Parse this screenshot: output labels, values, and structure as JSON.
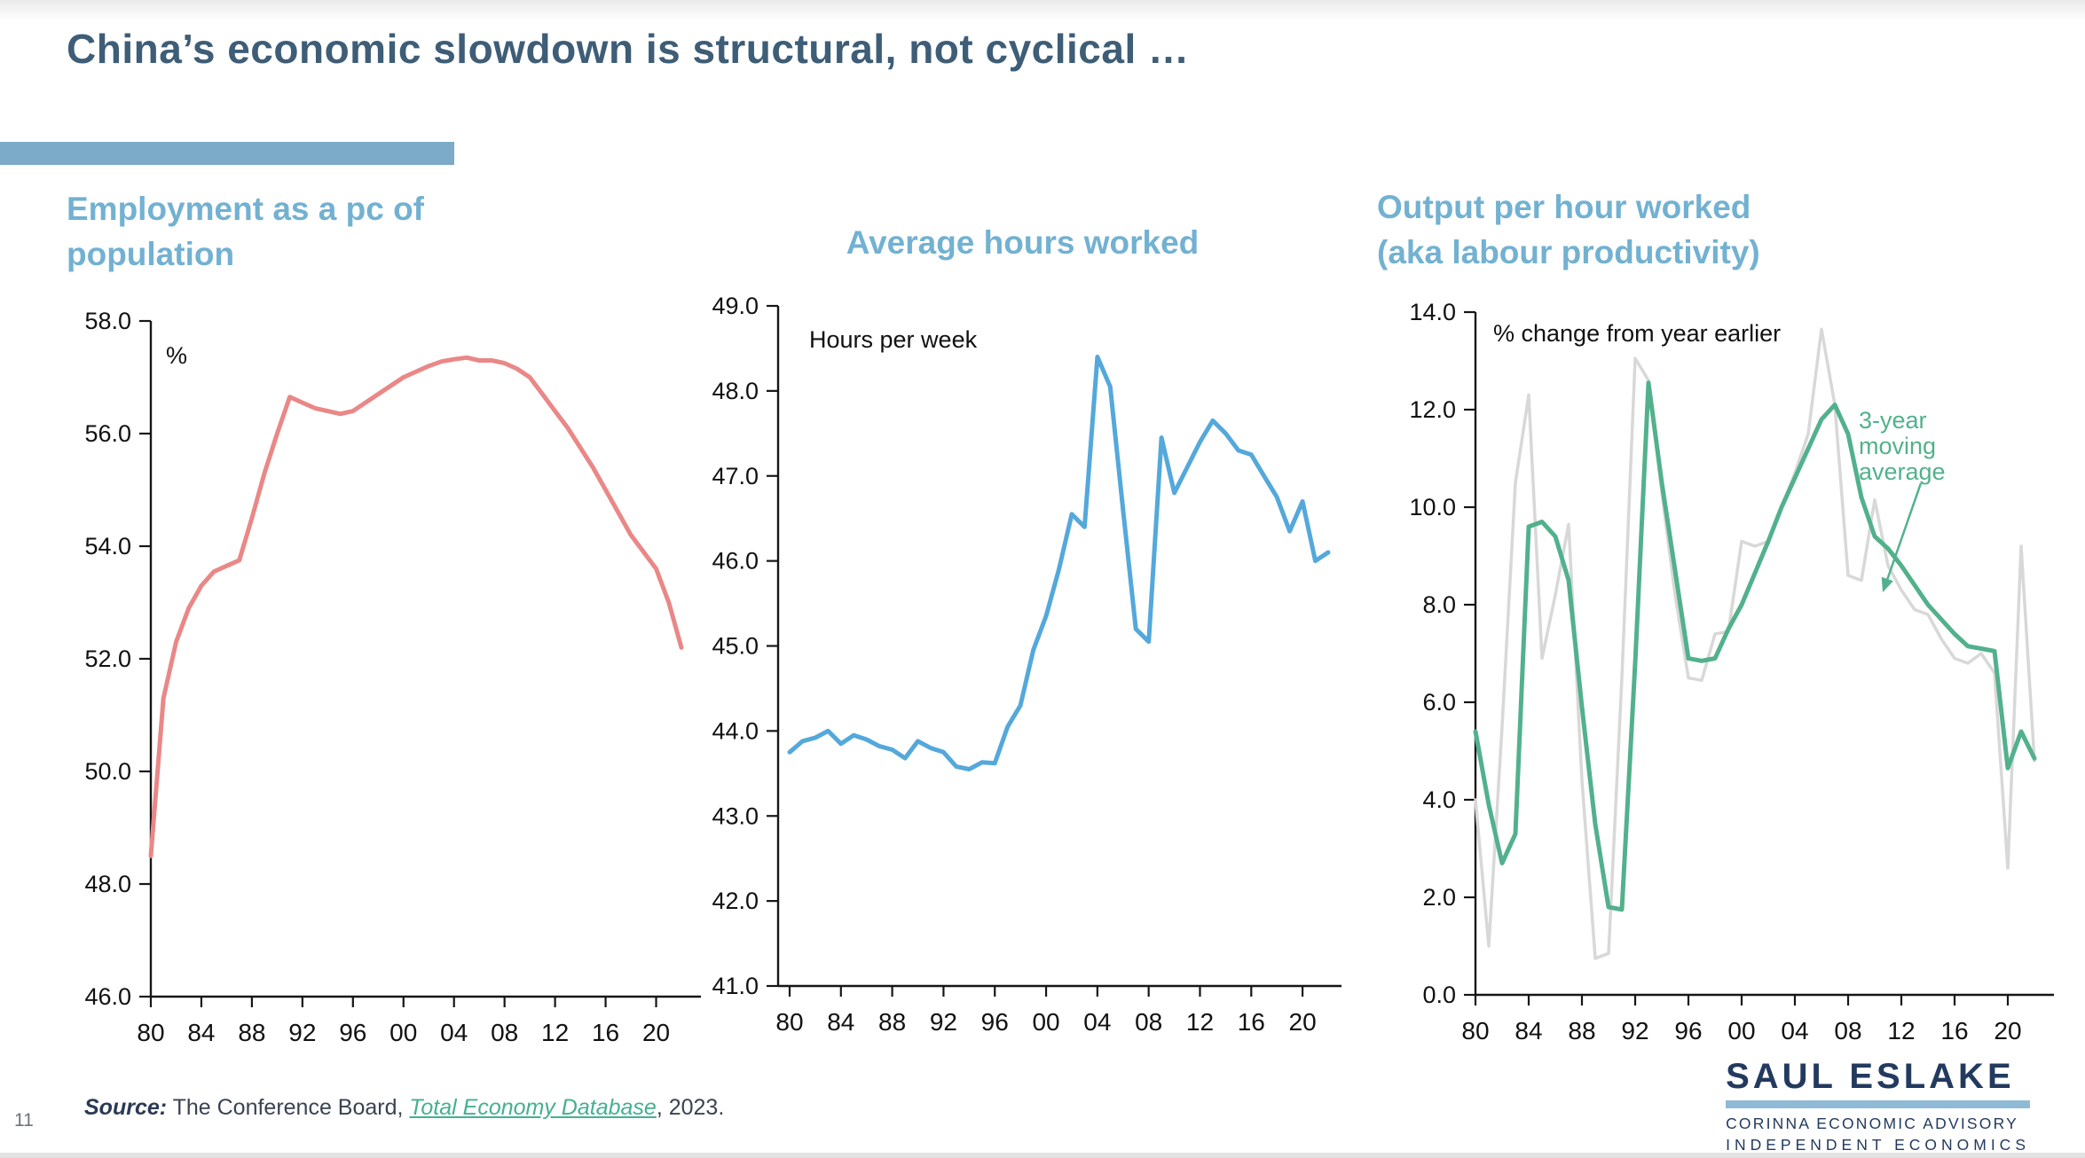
{
  "slide": {
    "title": "China’s economic slowdown is structural, not cyclical  …",
    "page_number": "11",
    "accent_bar_color": "#7BABC8",
    "title_color": "#3E5D77",
    "chart_title_color": "#72B1D1"
  },
  "source": {
    "label": "Source:",
    "text_before_link": " The Conference Board, ",
    "link_text": "Total Economy Database",
    "text_after_link": ", 2023.",
    "link_color": "#45B08E"
  },
  "logo": {
    "name": "SAUL ESLAKE",
    "line1": "CORINNA ECONOMIC ADVISORY",
    "line2": "INDEPENDENT ECONOMICS",
    "navy": "#223A5E",
    "bar_color": "#8FBAD6"
  },
  "chart_data": [
    {
      "type": "line",
      "title_lines": [
        "Employment as a pc of",
        "population"
      ],
      "unit_label": "%",
      "xlabel": "",
      "ylabel": "%",
      "ylim": [
        46.0,
        58.0
      ],
      "ytick_step": 2.0,
      "x_start": 1980,
      "x_end": 2022,
      "x_frequency": "annual",
      "xtick_labels": [
        "80",
        "84",
        "88",
        "92",
        "96",
        "00",
        "04",
        "08",
        "12",
        "16",
        "20"
      ],
      "grid": false,
      "series": [
        {
          "name": "employment-as-pc-of-population",
          "color": "#EA8787",
          "stroke_width": 5,
          "values": [
            48.5,
            51.3,
            52.3,
            52.9,
            53.3,
            53.55,
            53.65,
            53.75,
            54.5,
            55.3,
            56.0,
            56.65,
            56.55,
            56.45,
            56.4,
            56.35,
            56.4,
            56.55,
            56.7,
            56.85,
            57.0,
            57.1,
            57.2,
            57.28,
            57.32,
            57.35,
            57.3,
            57.3,
            57.25,
            57.15,
            57.0,
            56.7,
            56.4,
            56.1,
            55.75,
            55.4,
            55.0,
            54.6,
            54.2,
            53.9,
            53.6,
            53.0,
            52.2
          ]
        }
      ]
    },
    {
      "type": "line",
      "title_lines": [
        "Average hours worked"
      ],
      "unit_label": "Hours per week",
      "xlabel": "",
      "ylabel": "Hours per week",
      "ylim": [
        41.0,
        49.0
      ],
      "ytick_step": 1.0,
      "x_start": 1980,
      "x_end": 2022,
      "x_frequency": "annual",
      "xtick_labels": [
        "80",
        "84",
        "88",
        "92",
        "96",
        "00",
        "04",
        "08",
        "12",
        "16",
        "20"
      ],
      "grid": false,
      "series": [
        {
          "name": "average-hours-worked",
          "color": "#54A8DB",
          "stroke_width": 5,
          "values": [
            43.75,
            43.88,
            43.92,
            44.0,
            43.85,
            43.95,
            43.9,
            43.82,
            43.78,
            43.68,
            43.88,
            43.8,
            43.75,
            43.58,
            43.55,
            43.63,
            43.62,
            44.05,
            44.3,
            44.95,
            45.35,
            45.9,
            46.55,
            46.4,
            48.4,
            48.05,
            46.6,
            45.2,
            45.05,
            47.45,
            46.8,
            47.1,
            47.4,
            47.65,
            47.5,
            47.3,
            47.25,
            47.0,
            46.75,
            46.35,
            46.7,
            46.0,
            46.1
          ]
        }
      ]
    },
    {
      "type": "line",
      "title_lines": [
        "Output per hour worked",
        "(aka labour productivity)"
      ],
      "unit_label": "% change from year earlier",
      "xlabel": "",
      "ylabel": "% change from year earlier",
      "ylim": [
        0.0,
        14.0
      ],
      "ytick_step": 2.0,
      "x_start": 1980,
      "x_end": 2022,
      "x_frequency": "annual",
      "xtick_labels": [
        "80",
        "84",
        "88",
        "92",
        "96",
        "00",
        "04",
        "08",
        "12",
        "16",
        "20"
      ],
      "grid": false,
      "annotation": {
        "text_lines": [
          "3-year",
          "moving",
          "average"
        ],
        "color": "#52B18C"
      },
      "series": [
        {
          "name": "annual-pc-change",
          "color": "#D8D8D8",
          "stroke_width": 3.5,
          "values": [
            4.0,
            1.0,
            5.5,
            10.5,
            12.3,
            6.9,
            8.2,
            9.65,
            4.4,
            0.75,
            0.85,
            6.5,
            13.05,
            12.6,
            10.3,
            8.2,
            6.5,
            6.45,
            7.4,
            7.45,
            9.3,
            9.2,
            9.3,
            10.0,
            10.7,
            11.5,
            13.65,
            12.1,
            8.6,
            8.5,
            10.15,
            8.8,
            8.3,
            7.9,
            7.8,
            7.3,
            6.9,
            6.8,
            7.0,
            6.6,
            2.6,
            9.2,
            4.8
          ]
        },
        {
          "name": "3-year-moving-average",
          "color": "#52B18C",
          "stroke_width": 5,
          "values": [
            5.4,
            3.9,
            2.7,
            3.3,
            9.6,
            9.7,
            9.4,
            8.5,
            5.9,
            3.5,
            1.8,
            1.75,
            6.8,
            12.55,
            10.5,
            8.7,
            6.9,
            6.85,
            6.9,
            7.5,
            8.0,
            8.65,
            9.3,
            10.0,
            10.6,
            11.2,
            11.8,
            12.1,
            11.5,
            10.2,
            9.4,
            9.15,
            8.8,
            8.4,
            8.0,
            7.7,
            7.4,
            7.15,
            7.1,
            7.05,
            4.65,
            5.4,
            4.85
          ]
        }
      ]
    }
  ]
}
